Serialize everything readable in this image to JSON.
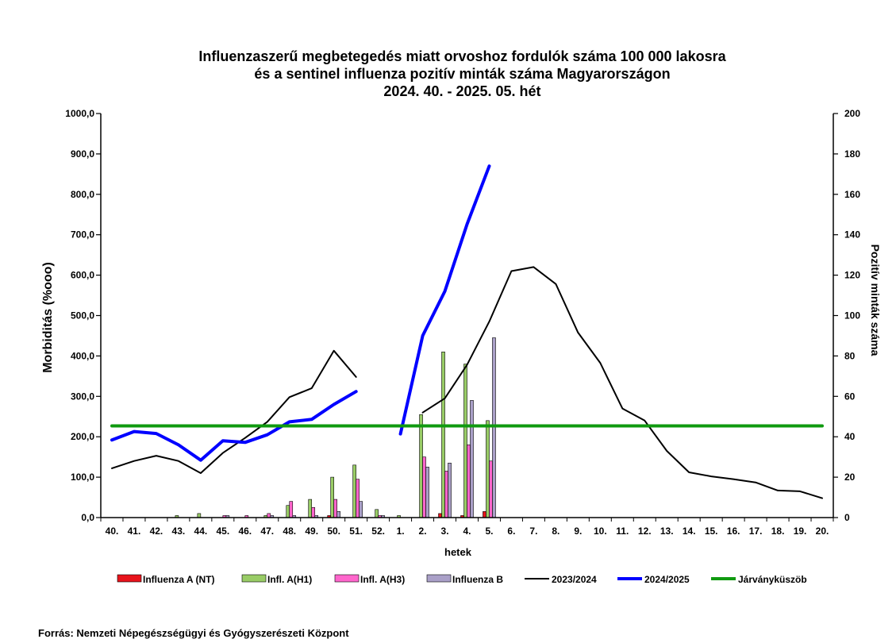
{
  "title_lines": [
    "Influenzaszerű megbetegedés miatt orvoshoz fordulók száma 100 000 lakosra",
    "és a sentinel influenza pozitív minták száma Magyarországon",
    "2024. 40. - 2025. 05. hét"
  ],
  "source": "Forrás: Nemzeti Népegészségügyi és Gyógyszerészeti Központ",
  "chart_data": {
    "type": "bar+line",
    "title": "Influenzaszerű megbetegedés miatt orvoshoz fordulók száma 100 000 lakosra és a sentinel influenza pozitív minták száma Magyarországon 2024. 40. - 2025. 05. hét",
    "xlabel": "hetek",
    "ylabel_left": "Morbiditás (%ooo)",
    "ylabel_right": "Pozitív minták száma",
    "ylim_left": [
      0,
      1000
    ],
    "ylim_right": [
      0,
      200
    ],
    "yticks_left": [
      "0,0",
      "100,0",
      "200,0",
      "300,0",
      "400,0",
      "500,0",
      "600,0",
      "700,0",
      "800,0",
      "900,0",
      "1000,0"
    ],
    "yticks_right": [
      "0",
      "20",
      "40",
      "60",
      "80",
      "100",
      "120",
      "140",
      "160",
      "180",
      "200"
    ],
    "categories": [
      "40.",
      "41.",
      "42.",
      "43.",
      "44.",
      "45.",
      "46.",
      "47.",
      "48.",
      "49.",
      "50.",
      "51.",
      "52.",
      "1.",
      "2.",
      "3.",
      "4.",
      "5.",
      "6.",
      "7.",
      "8.",
      "9.",
      "10.",
      "11.",
      "12.",
      "13.",
      "14.",
      "15.",
      "16.",
      "17.",
      "18.",
      "19.",
      "20."
    ],
    "bar_series": [
      {
        "name": "Influenza A (NT)",
        "axis": "right",
        "color": "#e8141c",
        "values": [
          0,
          0,
          0,
          0,
          0,
          0,
          0,
          0,
          0,
          0,
          1,
          0,
          0,
          0,
          0,
          2,
          1,
          3,
          null,
          null,
          null,
          null,
          null,
          null,
          null,
          null,
          null,
          null,
          null,
          null,
          null,
          null,
          null
        ]
      },
      {
        "name": "Infl. A(H1)",
        "axis": "right",
        "color": "#99cc66",
        "values": [
          0,
          0,
          0,
          1,
          2,
          0,
          0,
          1,
          6,
          9,
          20,
          26,
          4,
          1,
          51,
          82,
          76,
          48,
          null,
          null,
          null,
          null,
          null,
          null,
          null,
          null,
          null,
          null,
          null,
          null,
          null,
          null,
          null
        ]
      },
      {
        "name": "Infl. A(H3)",
        "axis": "right",
        "color": "#ff66cc",
        "values": [
          0,
          0,
          0,
          0,
          0,
          1,
          1,
          2,
          8,
          5,
          9,
          19,
          1,
          0,
          30,
          23,
          36,
          28,
          null,
          null,
          null,
          null,
          null,
          null,
          null,
          null,
          null,
          null,
          null,
          null,
          null,
          null,
          null
        ]
      },
      {
        "name": "Influenza B",
        "axis": "right",
        "color": "#aaa0c8",
        "values": [
          0,
          0,
          0,
          0,
          0,
          1,
          0,
          1,
          1,
          1,
          3,
          8,
          1,
          0,
          25,
          27,
          58,
          89,
          null,
          null,
          null,
          null,
          null,
          null,
          null,
          null,
          null,
          null,
          null,
          null,
          null,
          null,
          null
        ]
      }
    ],
    "line_series": [
      {
        "name": "2023/2024",
        "axis": "left",
        "color": "#000000",
        "values": [
          122,
          140,
          153,
          140,
          110,
          160,
          197,
          237,
          298,
          320,
          413,
          348,
          null,
          null,
          260,
          295,
          378,
          485,
          610,
          620,
          578,
          458,
          383,
          270,
          240,
          165,
          112,
          102,
          95,
          87,
          67,
          65,
          48
        ]
      },
      {
        "name": "2024/2025",
        "axis": "left",
        "color": "#0000ff",
        "values": [
          192,
          213,
          208,
          180,
          142,
          190,
          186,
          205,
          237,
          243,
          280,
          312,
          null,
          207,
          450,
          560,
          726,
          870,
          null,
          null,
          null,
          null,
          null,
          null,
          null,
          null,
          null,
          null,
          null,
          null,
          null,
          null,
          null
        ]
      },
      {
        "name": "Járványküszöb",
        "axis": "left",
        "color": "#109a10",
        "values": [
          227,
          227,
          227,
          227,
          227,
          227,
          227,
          227,
          227,
          227,
          227,
          227,
          227,
          227,
          227,
          227,
          227,
          227,
          227,
          227,
          227,
          227,
          227,
          227,
          227,
          227,
          227,
          227,
          227,
          227,
          227,
          227,
          227
        ]
      }
    ],
    "legend": [
      "Influenza A (NT)",
      "Infl. A(H1)",
      "Infl. A(H3)",
      "Influenza B",
      "2023/2024",
      "2024/2025",
      "Járványküszöb"
    ],
    "legend_position": "bottom",
    "grid": false
  }
}
